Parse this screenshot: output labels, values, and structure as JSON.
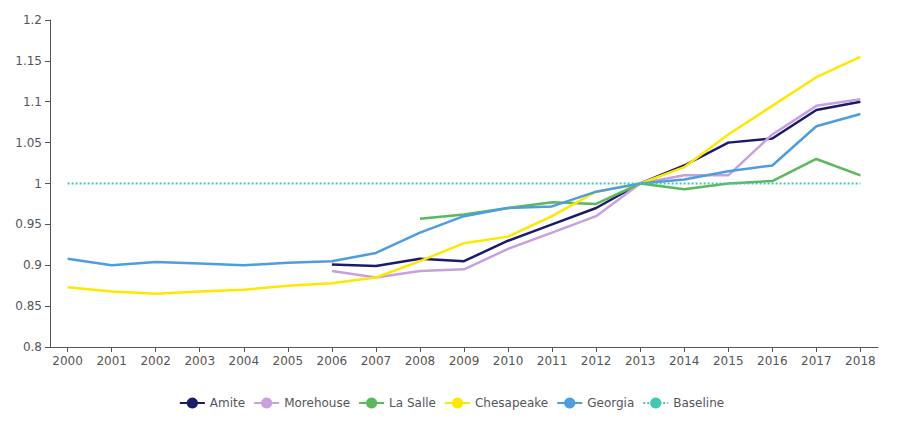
{
  "chart_data": {
    "type": "line",
    "x": [
      2000,
      2001,
      2002,
      2003,
      2004,
      2005,
      2006,
      2007,
      2008,
      2009,
      2010,
      2011,
      2012,
      2013,
      2014,
      2015,
      2016,
      2017,
      2018
    ],
    "series": [
      {
        "name": "Amite",
        "color": "#1b1b6b",
        "line_style": "solid",
        "values": [
          null,
          null,
          null,
          null,
          null,
          null,
          0.901,
          0.899,
          0.908,
          0.905,
          0.93,
          0.95,
          0.97,
          1.0,
          1.022,
          1.05,
          1.055,
          1.09,
          1.1
        ]
      },
      {
        "name": "Morehouse",
        "color": "#c9a0dc",
        "line_style": "solid",
        "values": [
          null,
          null,
          null,
          null,
          null,
          null,
          0.893,
          0.885,
          0.893,
          0.895,
          0.92,
          0.94,
          0.96,
          1.0,
          1.01,
          1.01,
          1.06,
          1.095,
          1.103
        ]
      },
      {
        "name": "La Salle",
        "color": "#5cb85c",
        "line_style": "solid",
        "values": [
          null,
          null,
          null,
          null,
          null,
          null,
          null,
          null,
          0.957,
          0.962,
          0.97,
          0.977,
          0.975,
          1.0,
          0.993,
          1.0,
          1.003,
          1.03,
          1.01
        ]
      },
      {
        "name": "Chesapeake",
        "color": "#ffe800",
        "line_style": "solid",
        "values": [
          0.873,
          0.868,
          0.865,
          0.868,
          0.87,
          0.875,
          0.878,
          0.885,
          0.905,
          0.927,
          0.935,
          0.96,
          0.99,
          1.0,
          1.02,
          1.06,
          1.095,
          1.13,
          1.155
        ]
      },
      {
        "name": "Georgia",
        "color": "#4d9de0",
        "line_style": "solid",
        "values": [
          0.908,
          0.9,
          0.904,
          0.902,
          0.9,
          0.903,
          0.905,
          0.915,
          0.94,
          0.96,
          0.97,
          0.972,
          0.99,
          1.0,
          1.005,
          1.015,
          1.022,
          1.07,
          1.085
        ]
      },
      {
        "name": "Baseline",
        "color": "#40c8b0",
        "line_style": "dotted",
        "values": [
          1.0,
          1.0,
          1.0,
          1.0,
          1.0,
          1.0,
          1.0,
          1.0,
          1.0,
          1.0,
          1.0,
          1.0,
          1.0,
          1.0,
          1.0,
          1.0,
          1.0,
          1.0,
          1.0
        ]
      }
    ],
    "xlim": [
      1999.6,
      2018.4
    ],
    "xticks": [
      2000,
      2001,
      2002,
      2003,
      2004,
      2005,
      2006,
      2007,
      2008,
      2009,
      2010,
      2011,
      2012,
      2013,
      2014,
      2015,
      2016,
      2017,
      2018
    ],
    "ylim": [
      0.8,
      1.2
    ],
    "yticks": [
      0.8,
      0.85,
      0.9,
      0.95,
      1.0,
      1.05,
      1.1,
      1.15,
      1.2
    ],
    "grid": false,
    "legend": "bottom"
  }
}
